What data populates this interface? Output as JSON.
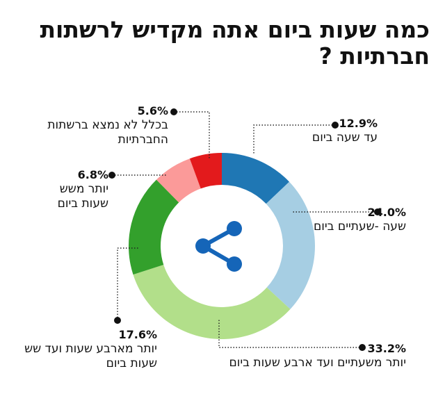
{
  "chart_data": {
    "type": "pie",
    "variant": "donut",
    "title": "כמה שעות ביום אתה מקדיש לרשתות חברתיות ?",
    "unit": "%",
    "slices": [
      {
        "value": 12.9,
        "label_pct": "12.9%",
        "label": "עד שעה ביום",
        "color": "#1f77b4"
      },
      {
        "value": 24.0,
        "label_pct": "24.0%",
        "label": "שעה -שעתיים ביום",
        "color": "#a6cee3"
      },
      {
        "value": 33.2,
        "label_pct": "33.2%",
        "label": "יותר משעתיים ועד ארבע שעות ביום",
        "color": "#b2df8a"
      },
      {
        "value": 17.6,
        "label_pct": "17.6%",
        "label": "יותר מארבע שעות ועד שש שעות ביום",
        "color": "#33a02c"
      },
      {
        "value": 6.8,
        "label_pct": "6.8%",
        "label": "יותר משש שעות ביום",
        "color": "#fb9a99"
      },
      {
        "value": 5.6,
        "label_pct": "5.6%",
        "label": "בכלל לא נמצא ברשתות החברתיות",
        "color": "#e31a1c"
      }
    ],
    "center_icon": "share-icon",
    "center_icon_color": "#1565b8"
  }
}
